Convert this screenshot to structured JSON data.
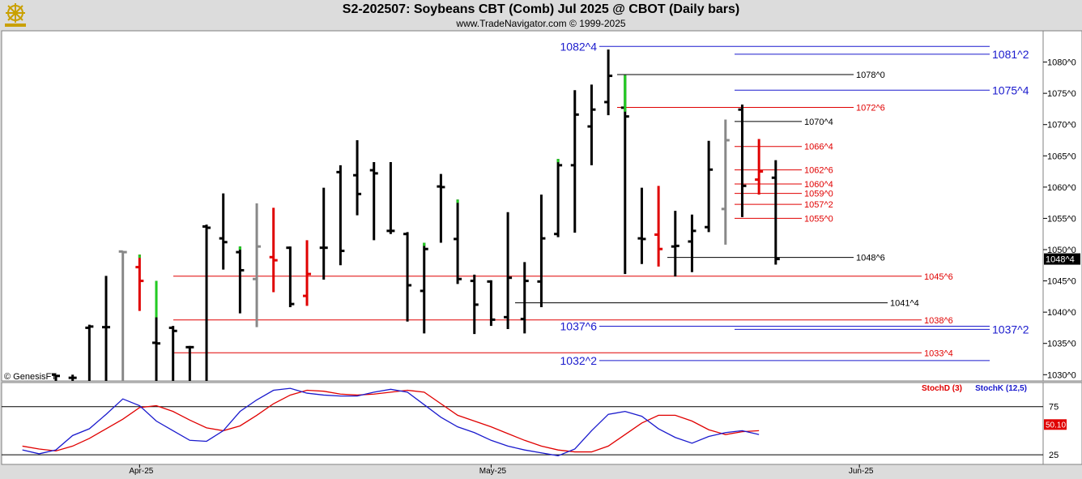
{
  "header": {
    "title": "S2-202507:  Soybeans CBT (Comb) Jul 2025 @ CBOT  (Daily bars)",
    "copyright": "www.TradeNavigator.com © 1999-2025"
  },
  "watermark": "© GenesisFT",
  "logo_icon": "ship-wheel-icon",
  "colors": {
    "up_bar": "#000000",
    "down_bar": "#000000",
    "red_bar": "#e00000",
    "green_tick": "#22cc22",
    "gray_bar": "#888888",
    "red_line": "#e00000",
    "blue_line": "#1a1acd",
    "black_line": "#000000",
    "stoch_d": "#e00000",
    "stoch_k": "#1a1acd",
    "price_badge_bg": "#000000",
    "stoch_badge_bg": "#e00000"
  },
  "chart_data": [
    {
      "type": "ohlc",
      "title": "S2-202507:  Soybeans CBT (Comb) Jul 2025 @ CBOT  (Daily bars)",
      "ylim": [
        1029,
        1085
      ],
      "y_ticks": [
        "1080^0",
        "1075^0",
        "1070^0",
        "1065^0",
        "1060^0",
        "1055^0",
        "1050^0",
        "1045^0",
        "1040^0",
        "1035^0",
        "1030^0"
      ],
      "y_tick_values": [
        1080,
        1075,
        1070,
        1065,
        1060,
        1055,
        1050,
        1045,
        1040,
        1035,
        1030
      ],
      "x_labels": [
        {
          "label": "Apr-25",
          "bar_index": 5
        },
        {
          "label": "May-25",
          "bar_index": 26
        },
        {
          "label": "Jun-25",
          "bar_index": 48
        }
      ],
      "last_price": "1048^4",
      "bars": [
        {
          "h": 1030.0,
          "l": 1029.0,
          "o": 1030.0,
          "c": 1029.8,
          "color": "black"
        },
        {
          "h": 1030.0,
          "l": 1029.0,
          "o": 1029.5,
          "c": 1029.5,
          "color": "black"
        },
        {
          "h": 1038.0,
          "l": 1029.0,
          "o": 1037.5,
          "c": 1037.7,
          "color": "black"
        },
        {
          "h": 1045.8,
          "l": 1029.0,
          "o": 1037.6,
          "c": 1037.6,
          "color": "black"
        },
        {
          "h": 1049.8,
          "l": 1029.0,
          "o": 1049.7,
          "c": 1049.6,
          "color": "gray"
        },
        {
          "h": 1049.2,
          "l": 1040.2,
          "o": 1047.2,
          "c": 1045.0,
          "color": "red",
          "tick": "green"
        },
        {
          "h": 1045.0,
          "l": 1029.0,
          "o": 1035.1,
          "c": 1035.0,
          "color": "black",
          "mark": "green"
        },
        {
          "h": 1037.8,
          "l": 1029.0,
          "o": 1037.5,
          "c": 1037.0,
          "color": "black"
        },
        {
          "h": 1034.6,
          "l": 1029.0,
          "o": 1034.4,
          "c": 1034.4,
          "color": "black"
        },
        {
          "h": 1054.0,
          "l": 1029.0,
          "o": 1053.7,
          "c": 1053.5,
          "color": "black"
        },
        {
          "h": 1059.0,
          "l": 1046.8,
          "o": 1051.8,
          "c": 1051.2,
          "color": "black"
        },
        {
          "h": 1050.5,
          "l": 1039.8,
          "o": 1049.6,
          "c": 1046.7,
          "color": "black",
          "tick": "green"
        },
        {
          "h": 1057.4,
          "l": 1037.6,
          "o": 1045.3,
          "c": 1050.5,
          "color": "gray"
        },
        {
          "h": 1056.7,
          "l": 1043.2,
          "o": 1048.8,
          "c": 1048.3,
          "color": "red"
        },
        {
          "h": 1050.5,
          "l": 1040.8,
          "o": 1050.3,
          "c": 1041.3,
          "color": "black"
        },
        {
          "h": 1051.5,
          "l": 1041.0,
          "o": 1042.6,
          "c": 1046.1,
          "color": "red"
        },
        {
          "h": 1059.9,
          "l": 1045.2,
          "o": 1050.3,
          "c": 1050.3,
          "color": "black"
        },
        {
          "h": 1063.5,
          "l": 1047.5,
          "o": 1062.4,
          "c": 1049.8,
          "color": "black"
        },
        {
          "h": 1067.5,
          "l": 1055.5,
          "o": 1061.9,
          "c": 1058.9,
          "color": "black"
        },
        {
          "h": 1064.0,
          "l": 1051.5,
          "o": 1062.7,
          "c": 1062.2,
          "color": "black"
        },
        {
          "h": 1064.0,
          "l": 1052.5,
          "o": 1053.0,
          "c": 1053.0,
          "color": "black"
        },
        {
          "h": 1052.8,
          "l": 1038.5,
          "o": 1052.5,
          "c": 1044.3,
          "color": "black"
        },
        {
          "h": 1051.1,
          "l": 1036.6,
          "o": 1043.4,
          "c": 1050.1,
          "color": "black",
          "tick": "green"
        },
        {
          "h": 1062.1,
          "l": 1051.1,
          "o": 1060.1,
          "c": 1060.0,
          "color": "black"
        },
        {
          "h": 1058.0,
          "l": 1044.5,
          "o": 1051.7,
          "c": 1045.3,
          "color": "black",
          "tick": "green"
        },
        {
          "h": 1046.0,
          "l": 1036.5,
          "o": 1045.0,
          "c": 1041.2,
          "color": "black"
        },
        {
          "h": 1045.1,
          "l": 1037.8,
          "o": 1044.9,
          "c": 1038.8,
          "color": "black"
        },
        {
          "h": 1056.0,
          "l": 1037.3,
          "o": 1039.2,
          "c": 1045.5,
          "color": "black"
        },
        {
          "h": 1048.0,
          "l": 1036.6,
          "o": 1038.9,
          "c": 1045.0,
          "color": "black"
        },
        {
          "h": 1058.8,
          "l": 1040.8,
          "o": 1044.9,
          "c": 1051.8,
          "color": "black"
        },
        {
          "h": 1064.5,
          "l": 1052.0,
          "o": 1052.5,
          "c": 1063.5,
          "color": "black",
          "tick": "green"
        },
        {
          "h": 1075.5,
          "l": 1052.7,
          "o": 1063.5,
          "c": 1071.6,
          "color": "black"
        },
        {
          "h": 1076.4,
          "l": 1063.5,
          "o": 1069.7,
          "c": 1072.4,
          "color": "black"
        },
        {
          "h": 1082.0,
          "l": 1071.5,
          "o": 1073.6,
          "c": 1077.8,
          "color": "black"
        },
        {
          "h": 1077.9,
          "l": 1046.1,
          "o": 1072.7,
          "c": 1071.3,
          "color": "black",
          "mark": "green"
        },
        {
          "h": 1059.9,
          "l": 1047.7,
          "o": 1051.8,
          "c": 1051.7,
          "color": "black"
        },
        {
          "h": 1060.2,
          "l": 1047.3,
          "o": 1052.4,
          "c": 1050.1,
          "color": "red"
        },
        {
          "h": 1056.2,
          "l": 1045.7,
          "o": 1050.5,
          "c": 1050.6,
          "color": "black"
        },
        {
          "h": 1055.6,
          "l": 1046.4,
          "o": 1051.3,
          "c": 1053.0,
          "color": "black"
        },
        {
          "h": 1067.4,
          "l": 1052.8,
          "o": 1053.6,
          "c": 1062.8,
          "color": "black"
        },
        {
          "h": 1070.8,
          "l": 1050.8,
          "o": 1056.5,
          "c": 1067.5,
          "color": "gray"
        },
        {
          "h": 1073.2,
          "l": 1055.2,
          "o": 1072.4,
          "c": 1060.2,
          "color": "black"
        },
        {
          "h": 1067.7,
          "l": 1058.8,
          "o": 1061.2,
          "c": 1062.5,
          "color": "red"
        },
        {
          "h": 1064.3,
          "l": 1047.6,
          "o": 1061.5,
          "c": 1048.5,
          "color": "black"
        }
      ],
      "levels": [
        {
          "label": "1082^4",
          "value": 1082.5,
          "color": "blue",
          "side": "left"
        },
        {
          "label": "1081^2",
          "value": 1081.25,
          "color": "blue",
          "side": "right"
        },
        {
          "label": "1078^0",
          "value": 1078.0,
          "color": "black",
          "side": "mid"
        },
        {
          "label": "1075^4",
          "value": 1075.5,
          "color": "blue",
          "side": "right"
        },
        {
          "label": "1072^6",
          "value": 1072.75,
          "color": "red",
          "side": "mid"
        },
        {
          "label": "1070^4",
          "value": 1070.5,
          "color": "black",
          "side": "mid"
        },
        {
          "label": "1066^4",
          "value": 1066.5,
          "color": "red",
          "side": "mid"
        },
        {
          "label": "1062^6",
          "value": 1062.75,
          "color": "red",
          "side": "mid"
        },
        {
          "label": "1060^4",
          "value": 1060.5,
          "color": "red",
          "side": "mid"
        },
        {
          "label": "1059^0",
          "value": 1059.0,
          "color": "red",
          "side": "mid"
        },
        {
          "label": "1057^2",
          "value": 1057.25,
          "color": "red",
          "side": "mid"
        },
        {
          "label": "1055^0",
          "value": 1055.0,
          "color": "red",
          "side": "mid"
        },
        {
          "label": "1048^6",
          "value": 1048.75,
          "color": "black",
          "side": "mid"
        },
        {
          "label": "1045^6",
          "value": 1045.75,
          "color": "red",
          "side": "mid"
        },
        {
          "label": "1041^4",
          "value": 1041.5,
          "color": "black",
          "side": "mid"
        },
        {
          "label": "1038^6",
          "value": 1038.75,
          "color": "red",
          "side": "mid"
        },
        {
          "label": "1037^6",
          "value": 1037.75,
          "color": "blue",
          "side": "left"
        },
        {
          "label": "1037^2",
          "value": 1037.25,
          "color": "blue",
          "side": "right"
        },
        {
          "label": "1033^4",
          "value": 1033.5,
          "color": "red",
          "side": "mid"
        },
        {
          "label": "1032^2",
          "value": 1032.25,
          "color": "blue",
          "side": "left"
        }
      ]
    },
    {
      "type": "line",
      "title": "",
      "ylim": [
        15,
        100
      ],
      "y_ticks": [
        "75",
        "25"
      ],
      "y_tick_values": [
        75,
        25
      ],
      "levels": [
        75,
        25
      ],
      "series": [
        {
          "name": "StochD (3)",
          "color": "red",
          "values": [
            34,
            31,
            29,
            34,
            42,
            52,
            62,
            74,
            76,
            70,
            61,
            53,
            50,
            55,
            66,
            78,
            87,
            92,
            91,
            88,
            87,
            88,
            90,
            92,
            90,
            78,
            66,
            60,
            54,
            47,
            40,
            34,
            30,
            28,
            28,
            34,
            46,
            58,
            66,
            66,
            60,
            51,
            46,
            49,
            50
          ]
        },
        {
          "name": "StochK (12,5)",
          "color": "blue",
          "values": [
            30,
            26,
            30,
            45,
            52,
            67,
            83,
            76,
            60,
            50,
            40,
            39,
            50,
            70,
            82,
            92,
            94,
            89,
            87,
            86,
            86,
            90,
            93,
            90,
            77,
            64,
            54,
            48,
            40,
            34,
            30,
            27,
            24,
            31,
            50,
            67,
            70,
            65,
            52,
            43,
            37,
            44,
            48,
            50,
            46
          ]
        }
      ],
      "last_value": "50.10",
      "legend": [
        "StochD (3)",
        "StochK (12,5)"
      ]
    }
  ]
}
